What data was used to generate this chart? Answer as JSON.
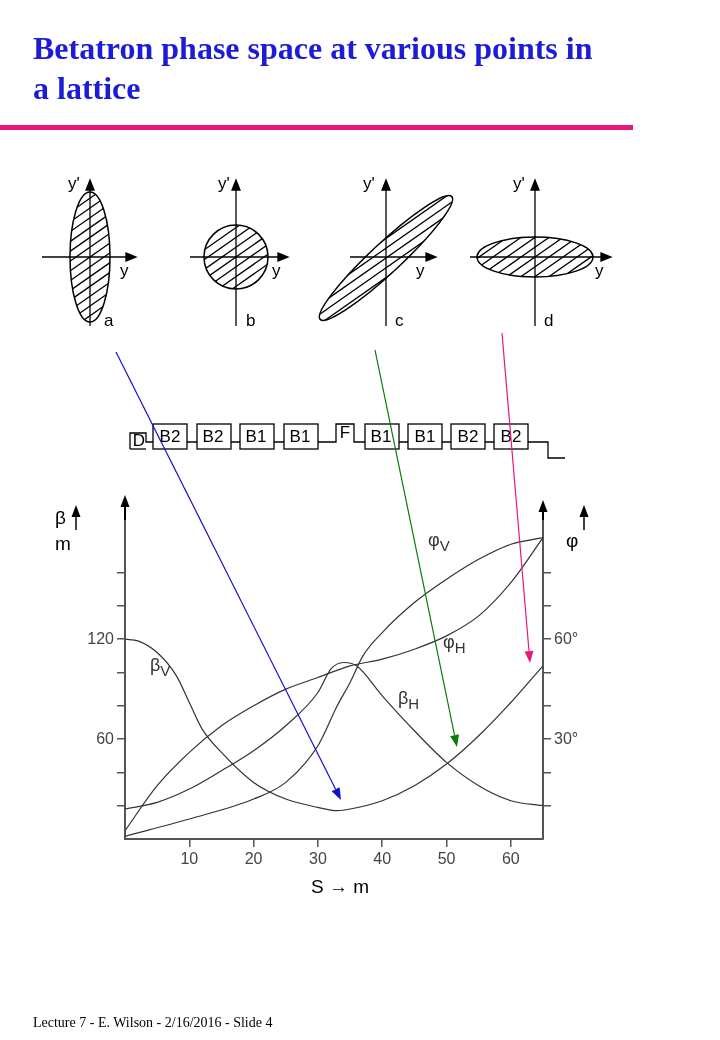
{
  "chart_data": {
    "type": "line",
    "title": "Betatron phase space at various points in a lattice",
    "xlabel": "S → m",
    "ylabel": "β\nm",
    "y2label": "φ",
    "xlim": [
      0,
      65
    ],
    "xticks": [
      10,
      20,
      30,
      40,
      50,
      60
    ],
    "ylim": [
      0,
      200
    ],
    "yticks": [
      {
        "value": 20,
        "label": null
      },
      {
        "value": 40,
        "label": null
      },
      60,
      {
        "value": 80,
        "label": null
      },
      {
        "value": 100,
        "label": null
      },
      120,
      {
        "value": 140,
        "label": null
      },
      {
        "value": 160,
        "label": null
      }
    ],
    "y2lim": [
      0,
      100
    ],
    "y2ticks": [
      {
        "value": 10,
        "label": null
      },
      {
        "value": 20,
        "label": null
      },
      {
        "value": 30,
        "label": "30°"
      },
      {
        "value": 40,
        "label": null
      },
      {
        "value": 50,
        "label": null
      },
      {
        "value": 60,
        "label": "60°"
      },
      {
        "value": 70,
        "label": null
      },
      {
        "value": 80,
        "label": null
      }
    ],
    "grid": false,
    "legend": false,
    "series": [
      {
        "name": "β$_{V}$",
        "color": "#333333",
        "x": [
          0,
          2,
          5,
          8,
          10,
          12,
          15,
          20,
          25,
          30,
          33,
          35,
          40,
          45,
          50,
          55,
          60,
          65
        ],
        "values": [
          120,
          119,
          112,
          98,
          82,
          66,
          52,
          34,
          24,
          19,
          17,
          18,
          23,
          32,
          45,
          62,
          82,
          104
        ]
      },
      {
        "name": "β$_{H}$",
        "color": "#333333",
        "x": [
          0,
          5,
          10,
          15,
          20,
          25,
          30,
          32,
          34,
          36,
          40,
          45,
          50,
          55,
          60,
          65
        ],
        "values": [
          18,
          22,
          30,
          41,
          53,
          68,
          88,
          102,
          106,
          104,
          86,
          65,
          46,
          32,
          23,
          20
        ]
      },
      {
        "name": "φ$_{V}$",
        "color": "#333333",
        "axis": "y2",
        "x": [
          0,
          10,
          20,
          25,
          30,
          33,
          35,
          37,
          40,
          45,
          50,
          55,
          60,
          65
        ],
        "values": [
          0.8,
          6,
          12,
          17,
          28,
          40,
          47,
          55,
          62,
          71,
          78,
          84,
          88.5,
          90.5
        ]
      },
      {
        "name": "φ$_{H}$",
        "color": "#333333",
        "axis": "y2",
        "x": [
          0,
          5,
          10,
          15,
          20,
          25,
          30,
          35,
          40,
          45,
          50,
          55,
          60,
          65
        ],
        "values": [
          2.5,
          16,
          26,
          34,
          40,
          45,
          48.5,
          52,
          54,
          57,
          61,
          67,
          77,
          90.5
        ]
      }
    ],
    "annotations": [
      "Lecture 7 - E. Wilson - 2/16/2016 - Slide 4",
      "y'",
      "y",
      "a",
      "y'",
      "y",
      "b",
      "y'",
      "y",
      "c",
      "y'",
      "y",
      "d",
      "D",
      "B2",
      "B2",
      "B1",
      "B1",
      "F",
      "B1",
      "B1",
      "B2",
      "B2"
    ]
  }
}
